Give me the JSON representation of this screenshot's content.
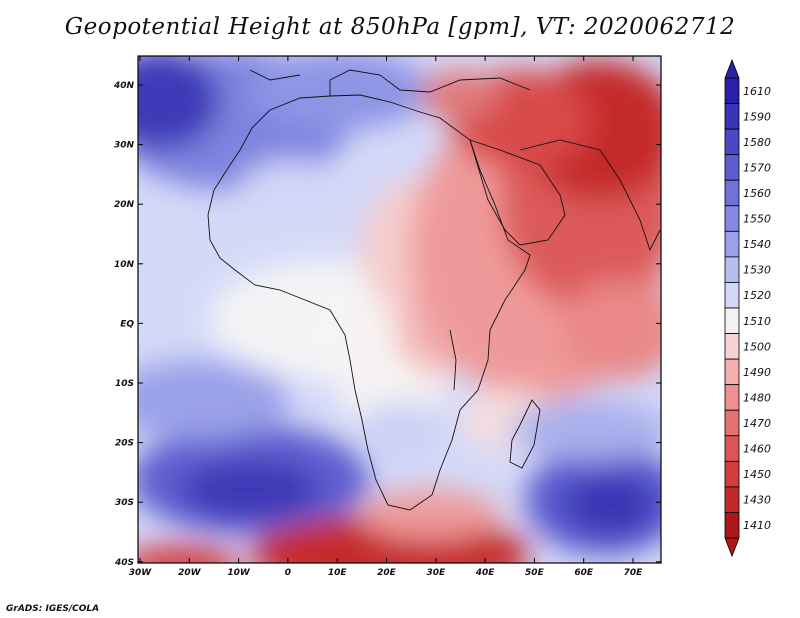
{
  "title": "Geopotential Height at 850hPa [gpm], VT: 2020062712",
  "credit": "GrADS: IGES/COLA",
  "lat_labels": [
    "40N",
    "30N",
    "20N",
    "10N",
    "EQ",
    "10S",
    "20S",
    "30S",
    "40S"
  ],
  "lon_labels": [
    "30W",
    "20W",
    "10W",
    "0",
    "10E",
    "20E",
    "30E",
    "40E",
    "50E",
    "60E",
    "70E"
  ],
  "colorbar": {
    "labels": [
      "1610",
      "1590",
      "1580",
      "1570",
      "1560",
      "1550",
      "1540",
      "1530",
      "1520",
      "1510",
      "1500",
      "1490",
      "1480",
      "1470",
      "1460",
      "1450",
      "1430",
      "1410"
    ],
    "colors": [
      "#2a20a8",
      "#3a33b8",
      "#4a46c4",
      "#5c5ccf",
      "#6f72d8",
      "#8489e1",
      "#9ba2e9",
      "#b6bdf1",
      "#d2d7f8",
      "#f2f2f2",
      "#f7d2d2",
      "#f2b0b0",
      "#ec9090",
      "#e57272",
      "#dd5656",
      "#d23d3d",
      "#c22828",
      "#ad1717"
    ]
  },
  "colors": {
    "high": "#2a20a8",
    "neutral": "#f7f7f7",
    "low": "#ad1717"
  }
}
